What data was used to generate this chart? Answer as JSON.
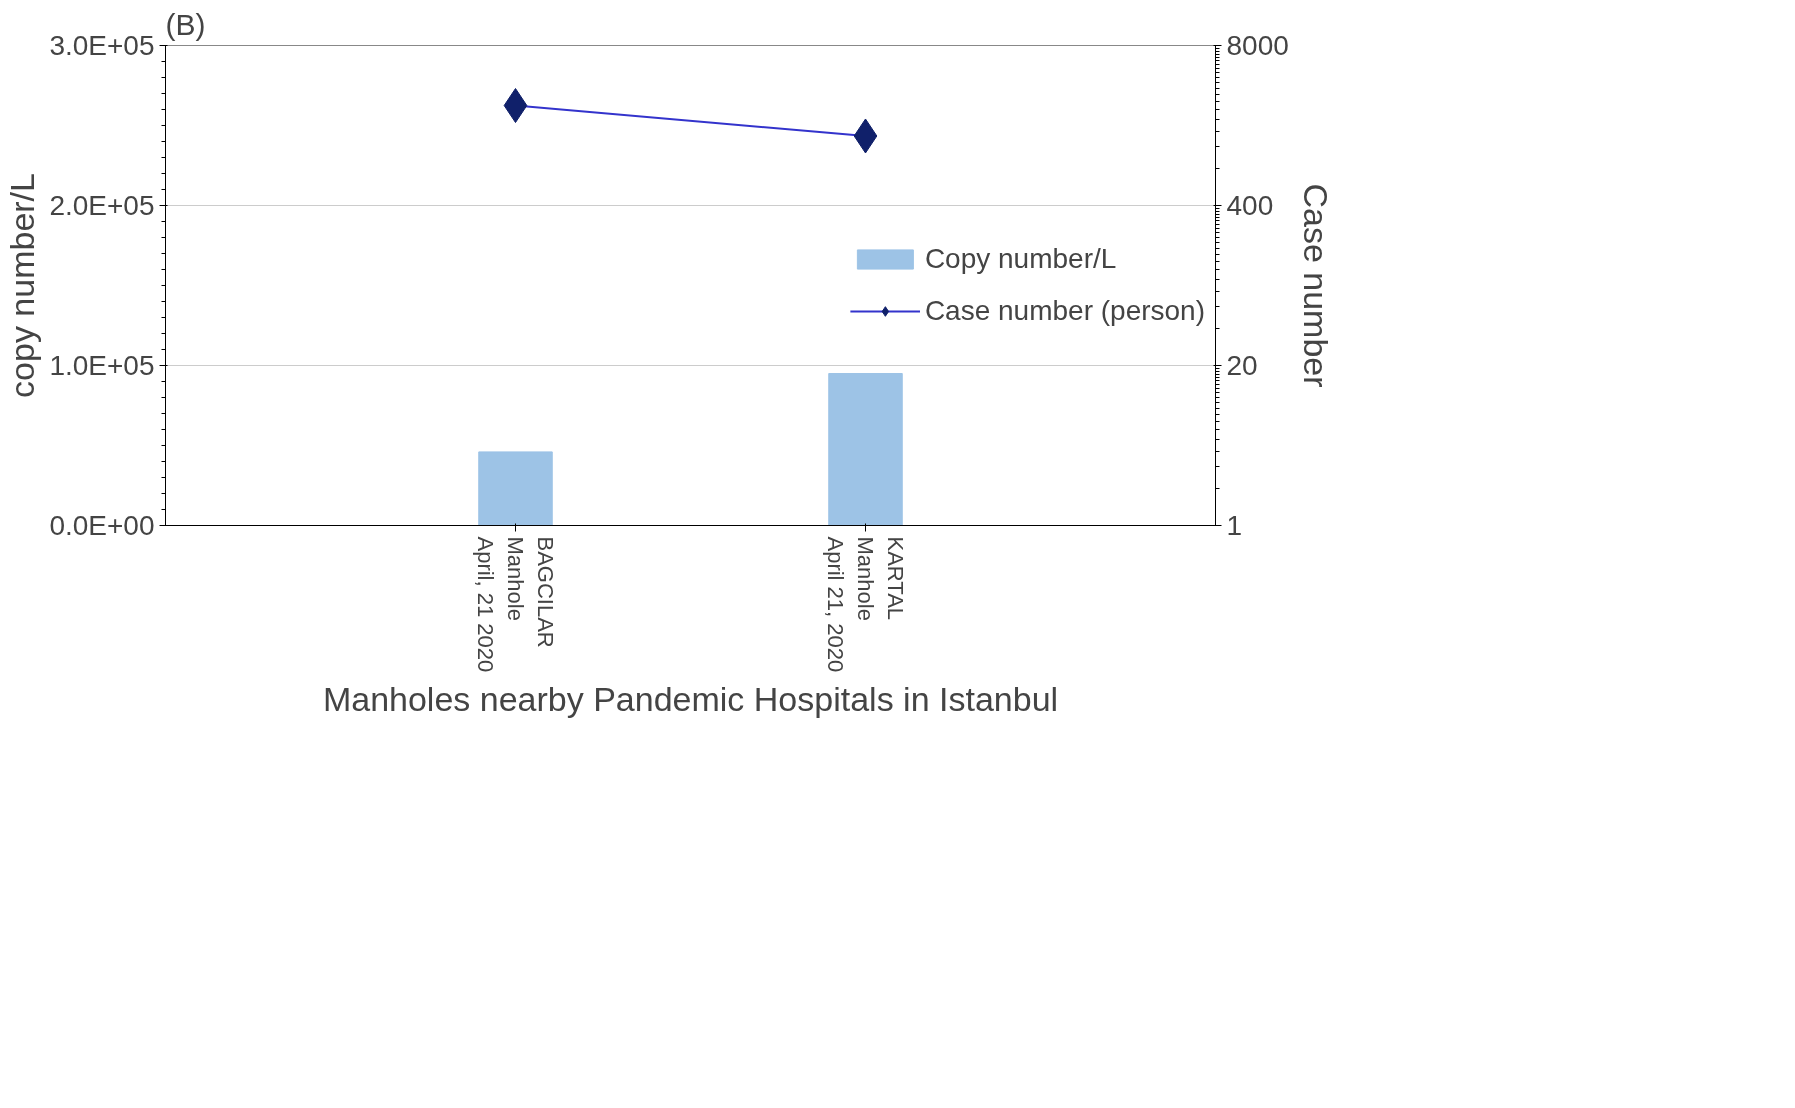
{
  "chart_data": {
    "type": "bar",
    "title": "(B)",
    "xlabel": "Manholes nearby Pandemic Hospitals in Istanbul",
    "ylabel": "copy number/L",
    "y2label": "Case number",
    "categories": [
      "BAGCILAR\nManhole\nApril, 21 2020",
      "KARTAL\nManhole\nApril 21, 2020"
    ],
    "series": [
      {
        "name": "Copy number/L",
        "color": "#9dc3e6",
        "values": [
          46000,
          95000
        ]
      },
      {
        "name": "Case number (person)",
        "type": "line",
        "axis": "y2",
        "color": "#3333cc",
        "marker": "diamond",
        "values": [
          2600,
          1470
        ]
      }
    ],
    "ylim": [
      0,
      300000
    ],
    "yticks": [
      {
        "value": 0,
        "label": "0.0E+00"
      },
      {
        "value": 100000,
        "label": "1.0E+05"
      },
      {
        "value": 200000,
        "label": "2.0E+05"
      },
      {
        "value": 300000,
        "label": "3.0E+05"
      }
    ],
    "y2lim": [
      1,
      8000
    ],
    "y2ticks": [
      1,
      20,
      400,
      8000
    ],
    "log": "y2",
    "grid": "y",
    "legend": "right"
  }
}
